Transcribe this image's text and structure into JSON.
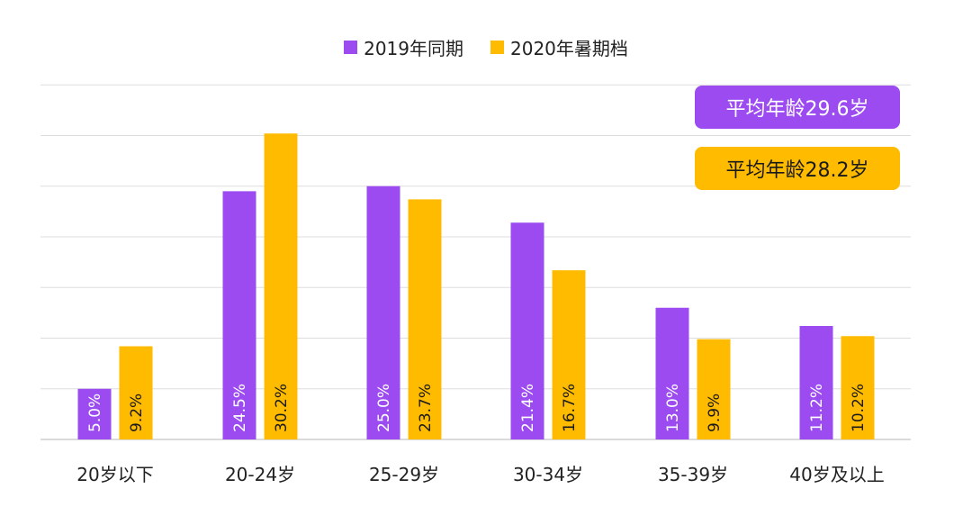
{
  "chart_data": {
    "type": "bar",
    "categories": [
      "20岁以下",
      "20-24岁",
      "25-29岁",
      "30-34岁",
      "35-39岁",
      "40岁及以上"
    ],
    "series": [
      {
        "name": "2019年同期",
        "color": "#9B4BF0",
        "values": [
          5.0,
          24.5,
          25.0,
          21.4,
          13.0,
          11.2
        ],
        "labels": [
          "5.0%",
          "24.5%",
          "25.0%",
          "21.4%",
          "13.0%",
          "11.2%"
        ]
      },
      {
        "name": "2020年暑期档",
        "color": "#FFBB00",
        "values": [
          9.2,
          30.2,
          23.7,
          16.7,
          9.9,
          10.2
        ],
        "labels": [
          "9.2%",
          "30.2%",
          "23.7%",
          "16.7%",
          "9.9%",
          "10.2%"
        ]
      }
    ],
    "ylim": [
      0,
      35
    ],
    "grid": true,
    "legend": "top-center",
    "annotations": [
      {
        "text": "平均年龄29.6岁",
        "series": "2019年同期"
      },
      {
        "text": "平均年龄28.2岁",
        "series": "2020年暑期档"
      }
    ]
  }
}
